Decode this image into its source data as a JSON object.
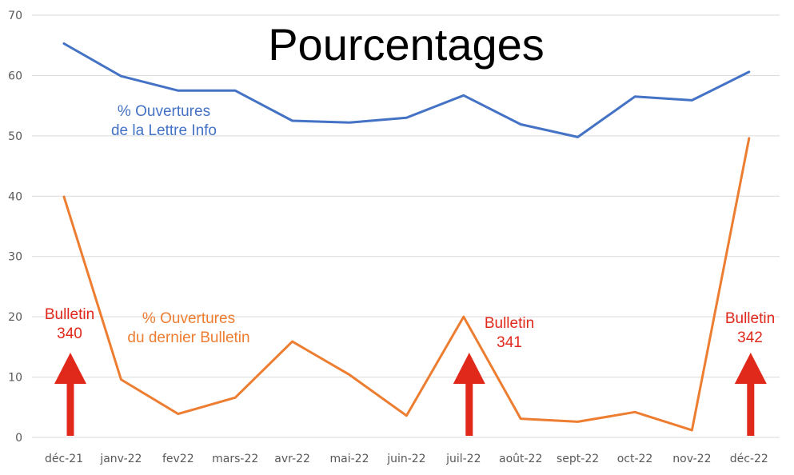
{
  "chart_data": {
    "type": "line",
    "title": "Pourcentages",
    "categories": [
      "déc-21",
      "janv-22",
      "fev22",
      "mars-22",
      "avr-22",
      "mai-22",
      "juin-22",
      "juil-22",
      "août-22",
      "sept-22",
      "oct-22",
      "nov-22",
      "déc-22"
    ],
    "ylim": [
      0,
      70
    ],
    "yticks": [
      0,
      10,
      20,
      30,
      40,
      50,
      60,
      70
    ],
    "grid": true,
    "series": [
      {
        "name_lines": [
          "% Ouvertures",
          "de la Lettre Info"
        ],
        "color": "#4472C4",
        "values": [
          65.3,
          59.9,
          57.5,
          57.5,
          52.5,
          52.2,
          53.0,
          56.7,
          51.9,
          49.8,
          56.5,
          55.9,
          60.6
        ]
      },
      {
        "name_lines": [
          "% Ouvertures",
          "du dernier Bulletin"
        ],
        "color": "#ED7D31",
        "values": [
          39.9,
          9.6,
          3.9,
          6.6,
          15.9,
          10.4,
          3.6,
          20.0,
          3.1,
          2.6,
          4.2,
          1.2,
          49.6
        ]
      }
    ],
    "annotations": [
      {
        "category_index": 0,
        "lines": [
          "Bulletin",
          "340"
        ],
        "color": "#E0281B"
      },
      {
        "category_index": 7,
        "lines": [
          "Bulletin",
          "341"
        ],
        "color": "#E0281B"
      },
      {
        "category_index": 12,
        "lines": [
          "Bulletin",
          "342"
        ],
        "color": "#E0281B"
      }
    ]
  }
}
